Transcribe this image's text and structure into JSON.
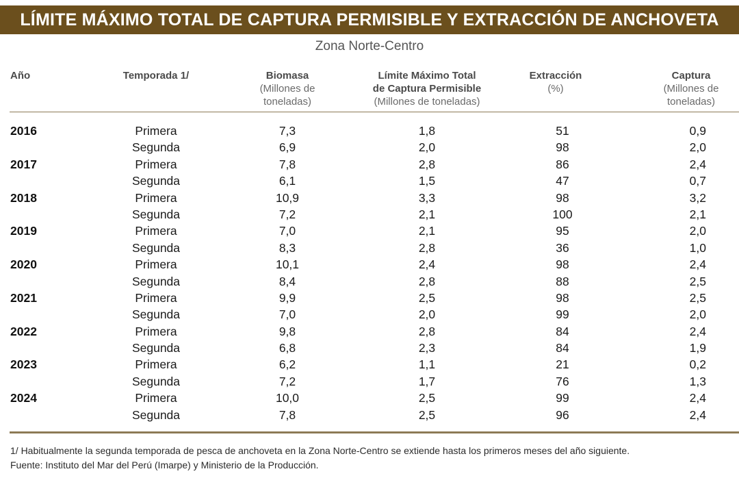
{
  "title": "LÍMITE MÁXIMO TOTAL DE CAPTURA PERMISIBLE Y EXTRACCIÓN DE ANCHOVETA",
  "subtitle": "Zona Norte-Centro",
  "headers": {
    "year": "Año",
    "season": "Temporada 1/",
    "biomass": {
      "title": "Biomasa",
      "unit_line1": "(Millones de",
      "unit_line2": "toneladas)"
    },
    "limit": {
      "title_line1": "Límite Máximo Total",
      "title_line2": "de Captura Permisible",
      "unit": "(Millones de toneladas)"
    },
    "extraction": {
      "title": "Extracción",
      "unit": "(%)"
    },
    "catch": {
      "title": "Captura",
      "unit_line1": "(Millones de",
      "unit_line2": "toneladas)"
    }
  },
  "rows": [
    {
      "year": "2016",
      "season": "Primera",
      "biomass": "7,3",
      "limit": "1,8",
      "extraction": "51",
      "catch": "0,9"
    },
    {
      "year": "",
      "season": "Segunda",
      "biomass": "6,9",
      "limit": "2,0",
      "extraction": "98",
      "catch": "2,0"
    },
    {
      "year": "2017",
      "season": "Primera",
      "biomass": "7,8",
      "limit": "2,8",
      "extraction": "86",
      "catch": "2,4"
    },
    {
      "year": "",
      "season": "Segunda",
      "biomass": "6,1",
      "limit": "1,5",
      "extraction": "47",
      "catch": "0,7"
    },
    {
      "year": "2018",
      "season": "Primera",
      "biomass": "10,9",
      "limit": "3,3",
      "extraction": "98",
      "catch": "3,2"
    },
    {
      "year": "",
      "season": "Segunda",
      "biomass": "7,2",
      "limit": "2,1",
      "extraction": "100",
      "catch": "2,1"
    },
    {
      "year": "2019",
      "season": "Primera",
      "biomass": "7,0",
      "limit": "2,1",
      "extraction": "95",
      "catch": "2,0"
    },
    {
      "year": "",
      "season": "Segunda",
      "biomass": "8,3",
      "limit": "2,8",
      "extraction": "36",
      "catch": "1,0"
    },
    {
      "year": "2020",
      "season": "Primera",
      "biomass": "10,1",
      "limit": "2,4",
      "extraction": "98",
      "catch": "2,4"
    },
    {
      "year": "",
      "season": "Segunda",
      "biomass": "8,4",
      "limit": "2,8",
      "extraction": "88",
      "catch": "2,5"
    },
    {
      "year": "2021",
      "season": "Primera",
      "biomass": "9,9",
      "limit": "2,5",
      "extraction": "98",
      "catch": "2,5"
    },
    {
      "year": "",
      "season": "Segunda",
      "biomass": "7,0",
      "limit": "2,0",
      "extraction": "99",
      "catch": "2,0"
    },
    {
      "year": "2022",
      "season": "Primera",
      "biomass": "9,8",
      "limit": "2,8",
      "extraction": "84",
      "catch": "2,4"
    },
    {
      "year": "",
      "season": "Segunda",
      "biomass": "6,8",
      "limit": "2,3",
      "extraction": "84",
      "catch": "1,9"
    },
    {
      "year": "2023",
      "season": "Primera",
      "biomass": "6,2",
      "limit": "1,1",
      "extraction": "21",
      "catch": "0,2"
    },
    {
      "year": "",
      "season": "Segunda",
      "biomass": "7,2",
      "limit": "1,7",
      "extraction": "76",
      "catch": "1,3"
    },
    {
      "year": "2024",
      "season": "Primera",
      "biomass": "10,0",
      "limit": "2,5",
      "extraction": "99",
      "catch": "2,4"
    },
    {
      "year": "",
      "season": "Segunda",
      "biomass": "7,8",
      "limit": "2,5",
      "extraction": "96",
      "catch": "2,4"
    }
  ],
  "footnotes": {
    "note1": "1/ Habitualmente la segunda temporada de pesca de anchoveta en la Zona Norte-Centro se extiende hasta los primeros meses del año siguiente.",
    "source": "Fuente: Instituto del Mar del Perú (Imarpe) y Ministerio de la Producción."
  },
  "colors": {
    "title_bar": "#6b4f1d",
    "rule": "#8c7a55"
  }
}
